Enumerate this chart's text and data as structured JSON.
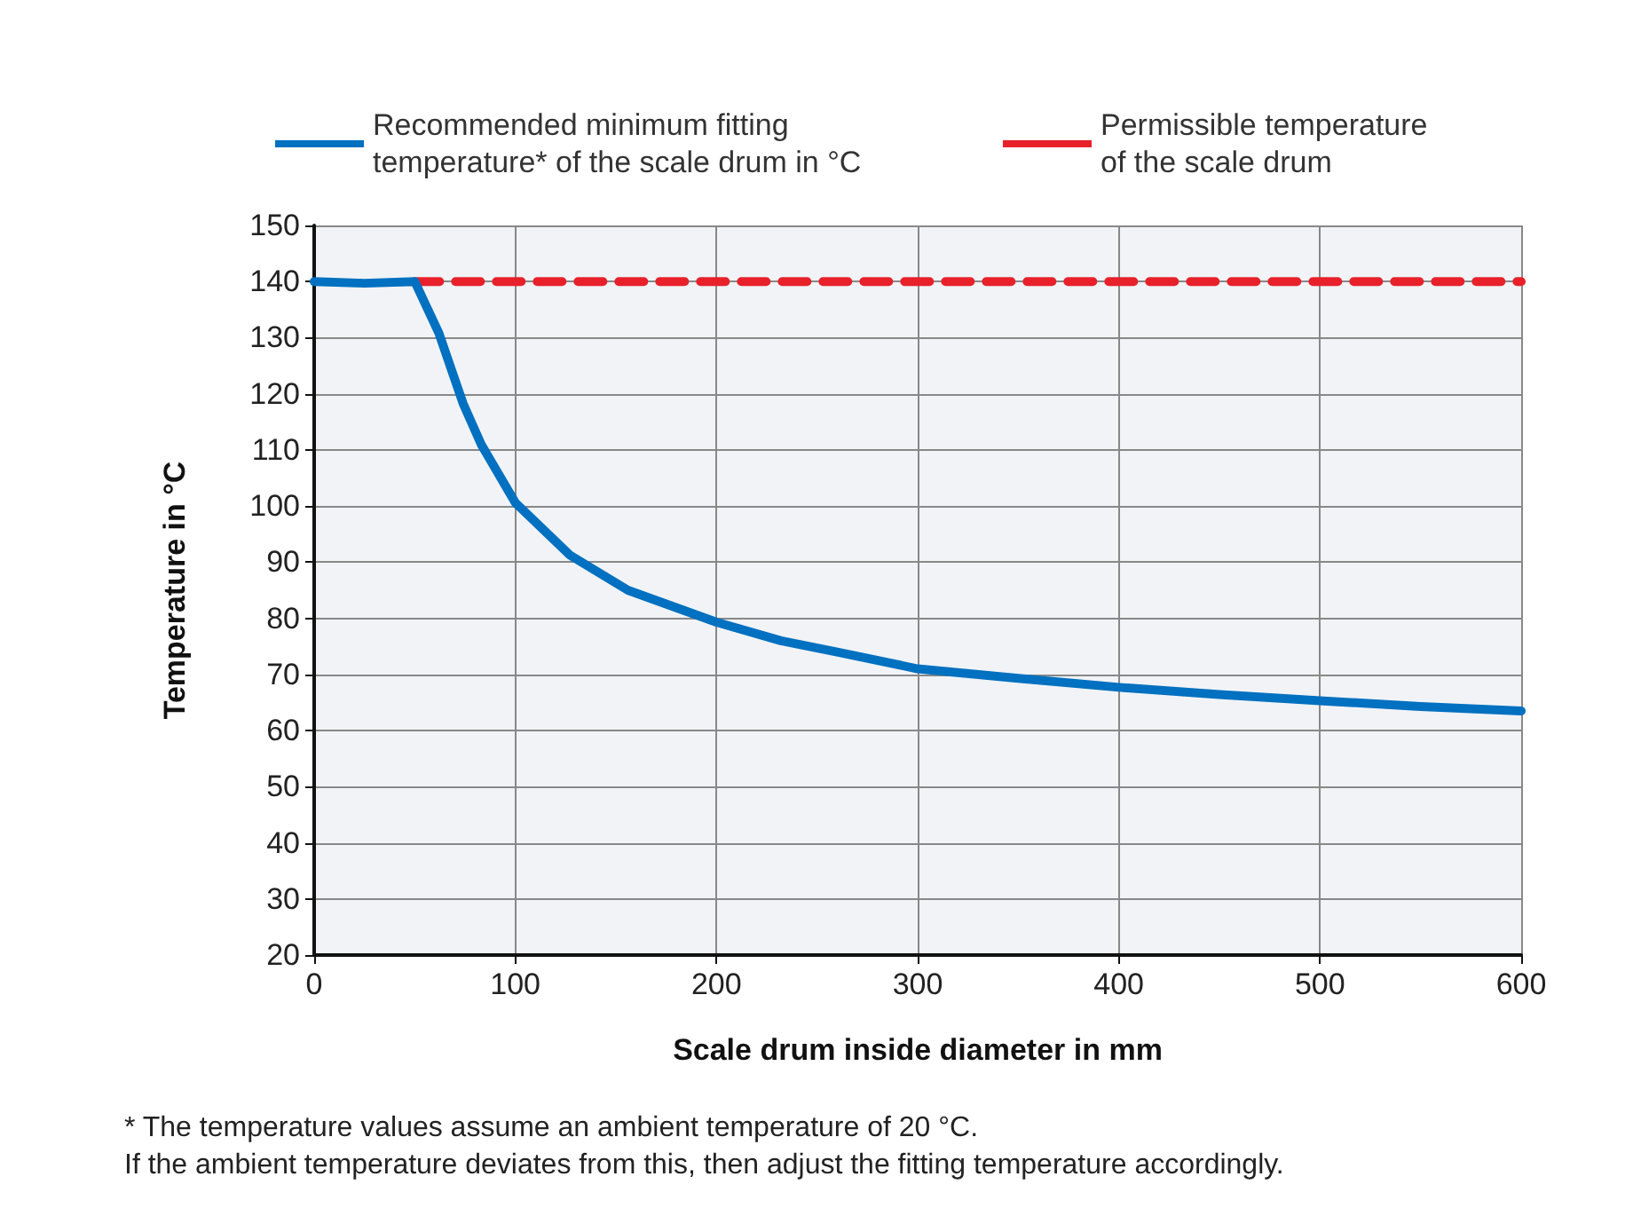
{
  "chart_data": {
    "type": "line",
    "xlabel": "Scale drum inside diameter in mm",
    "ylabel": "Temperature in °C",
    "series": [
      {
        "name": "Recommended minimum fitting temperature* of the scale drum in °C",
        "color": "#0070c0",
        "line_style": "solid",
        "x": [
          0,
          25,
          50,
          62,
          74,
          83,
          100,
          127,
          156,
          200,
          232,
          260,
          300,
          350,
          400,
          450,
          500,
          550,
          600
        ],
        "values": [
          140,
          139.7,
          140,
          130.8,
          118.3,
          111,
          100.6,
          91.3,
          85,
          79.3,
          76,
          74,
          71,
          69.3,
          67.7,
          66.4,
          65.3,
          64.3,
          63.5
        ]
      },
      {
        "name": "Permissible temperature of the scale drum",
        "color": "#e8202a",
        "line_style": "dashed",
        "x": [
          50,
          600
        ],
        "values": [
          140,
          140
        ]
      }
    ],
    "xlim": [
      0,
      600
    ],
    "xticks": [
      0,
      100,
      200,
      300,
      400,
      500,
      600
    ],
    "ylim": [
      20,
      150
    ],
    "yticks": [
      20,
      30,
      40,
      50,
      60,
      70,
      80,
      90,
      100,
      110,
      120,
      130,
      140,
      150
    ],
    "grid": true,
    "legend": "top",
    "marker": "none",
    "annotations": [
      "* The temperature values assume an ambient temperature of 20 °C.\nIf the ambient temperature deviates from this, then adjust the fitting temperature accordingly."
    ]
  }
}
